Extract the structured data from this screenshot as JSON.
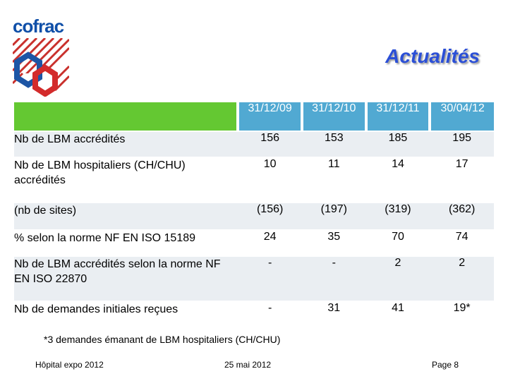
{
  "logo": {
    "text": "cofrac"
  },
  "title": "Actualités",
  "table": {
    "columns": [
      "31/12/09",
      "31/12/10",
      "31/12/11",
      "30/04/12"
    ],
    "rows": [
      {
        "label": "Nb de LBM accrédités",
        "values": [
          "156",
          "153",
          "185",
          "195"
        ]
      },
      {
        "label": "Nb de LBM hospitaliers (CH/CHU) accrédités",
        "values": [
          "10",
          "11",
          "14",
          "17"
        ]
      },
      {
        "label": "(nb de sites)",
        "values": [
          "(156)",
          "(197)",
          "(319)",
          "(362)"
        ]
      },
      {
        "label": "% selon la norme NF EN ISO 15189",
        "values": [
          "24",
          "35",
          "70",
          "74"
        ]
      },
      {
        "label": "Nb de LBM accrédités selon la norme NF EN ISO 22870",
        "values": [
          "-",
          "-",
          "2",
          "2"
        ]
      },
      {
        "label": "Nb de demandes initiales reçues",
        "values": [
          "-",
          "31",
          "41",
          "19*"
        ]
      }
    ]
  },
  "footnote": "*3 demandes émanant de LBM hospitaliers (CH/CHU)",
  "footer": {
    "left": "Hôpital expo 2012",
    "center": "25 mai 2012",
    "right": "Page 8"
  }
}
